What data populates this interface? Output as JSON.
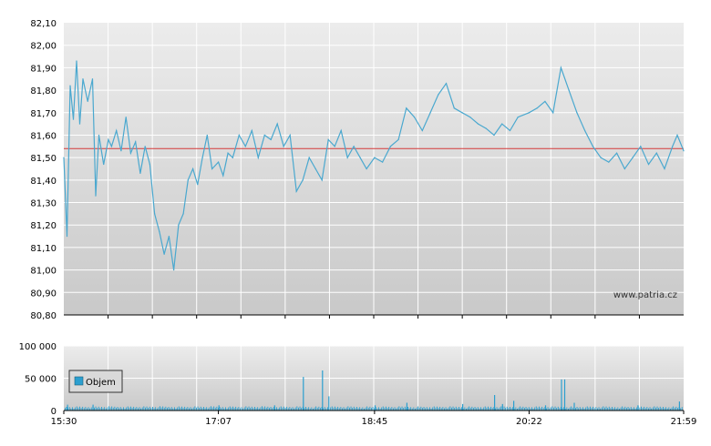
{
  "watermark": "www.patria.cz",
  "colors": {
    "price_line": "#4aa8cf",
    "reference_line": "#d43a3a",
    "volume_bar": "#2b9fcf",
    "grid": "#ffffff",
    "bg_top": "#ececec",
    "bg_bottom": "#c8c8c8"
  },
  "chart_data": [
    {
      "type": "line",
      "name": "price",
      "ylim": [
        80.8,
        82.1
      ],
      "y_ticks": [
        "82,10",
        "82,00",
        "81,90",
        "81,80",
        "81,70",
        "81,60",
        "81,50",
        "81,40",
        "81,30",
        "81,20",
        "81,10",
        "81,00",
        "80,90",
        "80,80"
      ],
      "x_ticks": [
        "15:30",
        "17:07",
        "18:45",
        "20:22",
        "21:59"
      ],
      "reference_value": 81.54,
      "grid": true,
      "series": [
        {
          "x": [
            "15:30",
            "15:32",
            "15:34",
            "15:36",
            "15:38",
            "15:40",
            "15:42",
            "15:45",
            "15:48",
            "15:50",
            "15:52",
            "15:55",
            "15:58",
            "16:00",
            "16:03",
            "16:06",
            "16:09",
            "16:12",
            "16:15",
            "16:18",
            "16:21",
            "16:24",
            "16:27",
            "16:30",
            "16:33",
            "16:36",
            "16:39",
            "16:42",
            "16:45",
            "16:48",
            "16:51",
            "16:54",
            "16:57",
            "17:00",
            "17:03",
            "17:07",
            "17:10",
            "17:13",
            "17:16",
            "17:20",
            "17:24",
            "17:28",
            "17:32",
            "17:36",
            "17:40",
            "17:44",
            "17:48",
            "17:52",
            "17:56",
            "18:00",
            "18:04",
            "18:08",
            "18:12",
            "18:16",
            "18:20",
            "18:24",
            "18:28",
            "18:32",
            "18:36",
            "18:40",
            "18:45",
            "18:50",
            "18:55",
            "19:00",
            "19:05",
            "19:10",
            "19:15",
            "19:20",
            "19:25",
            "19:30",
            "19:35",
            "19:40",
            "19:45",
            "19:50",
            "19:55",
            "20:00",
            "20:05",
            "20:10",
            "20:15",
            "20:22",
            "20:27",
            "20:32",
            "20:37",
            "20:42",
            "20:47",
            "20:52",
            "20:57",
            "21:02",
            "21:07",
            "21:12",
            "21:17",
            "21:22",
            "21:27",
            "21:32",
            "21:37",
            "21:42",
            "21:47",
            "21:52",
            "21:55",
            "21:59"
          ],
          "values": [
            81.5,
            81.15,
            81.82,
            81.67,
            81.93,
            81.65,
            81.85,
            81.75,
            81.85,
            81.33,
            81.6,
            81.47,
            81.58,
            81.55,
            81.62,
            81.53,
            81.68,
            81.52,
            81.57,
            81.43,
            81.55,
            81.47,
            81.25,
            81.17,
            81.07,
            81.15,
            81.0,
            81.2,
            81.25,
            81.4,
            81.45,
            81.38,
            81.5,
            81.6,
            81.45,
            81.48,
            81.42,
            81.52,
            81.5,
            81.6,
            81.55,
            81.62,
            81.5,
            81.6,
            81.58,
            81.65,
            81.55,
            81.6,
            81.35,
            81.4,
            81.5,
            81.45,
            81.4,
            81.58,
            81.55,
            81.62,
            81.5,
            81.55,
            81.5,
            81.45,
            81.5,
            81.48,
            81.55,
            81.58,
            81.72,
            81.68,
            81.62,
            81.7,
            81.78,
            81.83,
            81.72,
            81.7,
            81.68,
            81.65,
            81.63,
            81.6,
            81.65,
            81.62,
            81.68,
            81.7,
            81.72,
            81.75,
            81.7,
            81.9,
            81.8,
            81.7,
            81.62,
            81.55,
            81.5,
            81.48,
            81.52,
            81.45,
            81.5,
            81.55,
            81.47,
            81.52,
            81.45,
            81.55,
            81.6,
            81.53
          ]
        }
      ]
    },
    {
      "type": "bar",
      "name": "volume",
      "ylim": [
        0,
        100000
      ],
      "y_ticks": [
        "100 000",
        "50 000",
        "0"
      ],
      "x_ticks": [
        "15:30",
        "17:07",
        "18:45",
        "20:22",
        "21:59"
      ],
      "legend": [
        "Objem"
      ],
      "grid": true,
      "spikes": [
        {
          "x": "15:32",
          "value": 9000
        },
        {
          "x": "15:48",
          "value": 9000
        },
        {
          "x": "17:07",
          "value": 8000
        },
        {
          "x": "17:42",
          "value": 8000
        },
        {
          "x": "18:00",
          "value": 52000
        },
        {
          "x": "18:12",
          "value": 62000
        },
        {
          "x": "18:16",
          "value": 22000
        },
        {
          "x": "18:45",
          "value": 8000
        },
        {
          "x": "19:05",
          "value": 12000
        },
        {
          "x": "19:40",
          "value": 10000
        },
        {
          "x": "20:00",
          "value": 24000
        },
        {
          "x": "20:05",
          "value": 10000
        },
        {
          "x": "20:12",
          "value": 15000
        },
        {
          "x": "20:32",
          "value": 8000
        },
        {
          "x": "20:42",
          "value": 48000
        },
        {
          "x": "20:44",
          "value": 48000
        },
        {
          "x": "20:50",
          "value": 12000
        },
        {
          "x": "21:30",
          "value": 8000
        },
        {
          "x": "21:56",
          "value": 14000
        }
      ],
      "baseline": 6000
    }
  ]
}
